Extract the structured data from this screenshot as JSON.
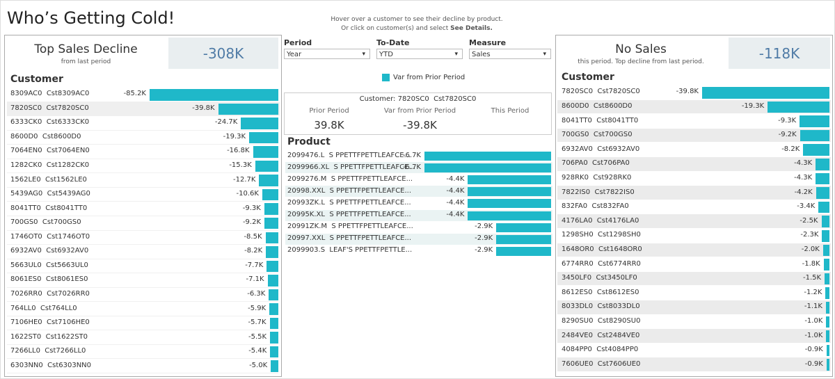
{
  "title": "Who’s Getting Cold!",
  "instructions": {
    "line1": "Hover over a customer to see their decline by product.",
    "line2": "Or click on customer(s) and select ",
    "line2_bold": "See Details."
  },
  "left_panel": {
    "heading": "Top Sales Decline",
    "subheading": "from last period",
    "kpi": "-308K"
  },
  "right_panel": {
    "heading": "No Sales",
    "subheading": "this period. Top decline from last period.",
    "kpi": "-118K"
  },
  "filters": [
    {
      "label": "Period",
      "value": "Year"
    },
    {
      "label": "To-Date",
      "value": "YTD"
    },
    {
      "label": "Measure",
      "value": "Sales"
    }
  ],
  "tooltip": {
    "customer": "Customer: 7820SC0  Cst7820SC0",
    "columns": [
      "Prior Period",
      "Var from Prior Period",
      "This Period"
    ],
    "values": [
      "39.8K",
      "-39.8K"
    ]
  },
  "chart_data": [
    {
      "type": "bar",
      "title": "Customer",
      "color": "#1fb8c9",
      "categories": [
        "8309AC0  Cst8309AC0",
        "7820SC0  Cst7820SC0",
        "6333CK0  Cst6333CK0",
        "8600D0  Cst8600D0",
        "7064EN0  Cst7064EN0",
        "1282CK0  Cst1282CK0",
        "1562LE0  Cst1562LE0",
        "5439AG0  Cst5439AG0",
        "8041TT0  Cst8041TT0",
        "700GS0  Cst700GS0",
        "1746OT0  Cst1746OT0",
        "6932AV0  Cst6932AV0",
        "5663UL0  Cst5663UL0",
        "8061ES0  Cst8061ES0",
        "7026RR0  Cst7026RR0",
        "764LL0  Cst764LL0",
        "7106HE0  Cst7106HE0",
        "1622ST0  Cst1622ST0",
        "7266LL0  Cst7266LL0",
        "6303NN0  Cst6303NN0"
      ],
      "values": [
        -85.2,
        -39.8,
        -24.7,
        -19.3,
        -16.8,
        -15.3,
        -12.7,
        -10.6,
        -9.3,
        -9.2,
        -8.5,
        -8.2,
        -7.7,
        -7.1,
        -6.3,
        -5.9,
        -5.7,
        -5.5,
        -5.4,
        -5.0
      ],
      "value_labels": [
        "-85.2K",
        "-39.8K",
        "-24.7K",
        "-19.3K",
        "-16.8K",
        "-15.3K",
        "-12.7K",
        "-10.6K",
        "-9.3K",
        "-9.2K",
        "-8.5K",
        "-8.2K",
        "-7.7K",
        "-7.1K",
        "-6.3K",
        "-5.9K",
        "-5.7K",
        "-5.5K",
        "-5.4K",
        "-5.0K"
      ]
    },
    {
      "type": "bar",
      "title": "Product",
      "categories": [
        "2099476.L  S PPETTFPETTLEAFCE...",
        "2099966.XL  S PPETTFPETTLEAFCE...",
        "2099276.M  S PPETTFPETTLEAFCE...",
        "20998.XXL  S PPETTFPETTLEAFCE...",
        "20993ZK.L  S PPETTFPETTLEAFCE...",
        "20995K.XL  S PPETTFPETTLEAFCE...",
        "20991ZK.M  S PPETTFPETTLEAFCE...",
        "20997.XXL  S PPETTFPETTLEAFCE...",
        "2099903.S  LEAF'S PPETTFPETTLE..."
      ],
      "series": [
        {
          "name": "Var from Prior Period",
          "color": "#1fb8c9",
          "values": [
            -6.7,
            -6.7,
            -4.4,
            -4.4,
            -4.4,
            -4.4,
            -2.9,
            -2.9,
            -2.9
          ],
          "value_labels": [
            "-6.7K",
            "-6.7K",
            "-4.4K",
            "-4.4K",
            "-4.4K",
            "-4.4K",
            "-2.9K",
            "-2.9K",
            "-2.9K"
          ]
        }
      ]
    },
    {
      "type": "bar",
      "title": "Customer",
      "color": "#1fb8c9",
      "categories": [
        "7820SC0  Cst7820SC0",
        "8600D0  Cst8600D0",
        "8041TT0  Cst8041TT0",
        "700GS0  Cst700GS0",
        "6932AV0  Cst6932AV0",
        "706PA0  Cst706PA0",
        "928RK0  Cst928RK0",
        "7822IS0  Cst7822IS0",
        "832FA0  Cst832FA0",
        "4176LA0  Cst4176LA0",
        "1298SH0  Cst1298SH0",
        "1648OR0  Cst1648OR0",
        "6774RR0  Cst6774RR0",
        "3450LF0  Cst3450LF0",
        "8612ES0  Cst8612ES0",
        "8033DL0  Cst8033DL0",
        "8290SU0  Cst8290SU0",
        "2484VE0  Cst2484VE0",
        "4084PP0  Cst4084PP0",
        "7606UE0  Cst7606UE0"
      ],
      "values": [
        -39.8,
        -19.3,
        -9.3,
        -9.2,
        -8.2,
        -4.3,
        -4.3,
        -4.2,
        -3.4,
        -2.5,
        -2.3,
        -2.0,
        -1.8,
        -1.5,
        -1.2,
        -1.1,
        -1.0,
        -1.0,
        -0.9,
        -0.9
      ],
      "value_labels": [
        "-39.8K",
        "-19.3K",
        "-9.3K",
        "-9.2K",
        "-8.2K",
        "-4.3K",
        "-4.3K",
        "-4.2K",
        "-3.4K",
        "-2.5K",
        "-2.3K",
        "-2.0K",
        "-1.8K",
        "-1.5K",
        "-1.2K",
        "-1.1K",
        "-1.0K",
        "-1.0K",
        "-0.9K",
        "-0.9K"
      ]
    }
  ]
}
